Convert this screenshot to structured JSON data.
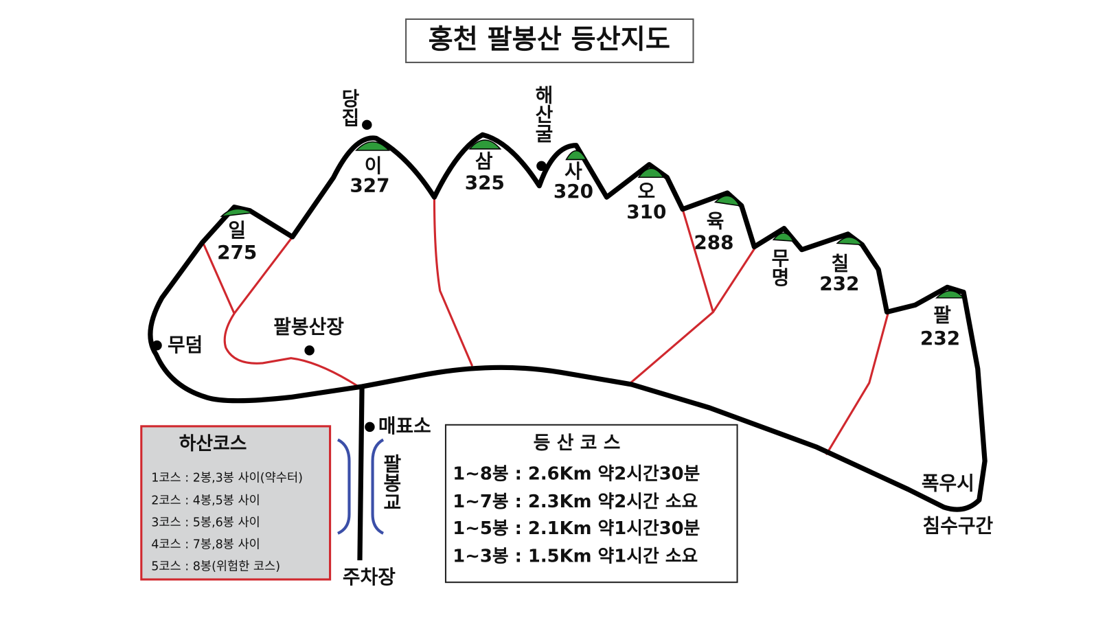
{
  "title": "홍천 팔봉산 등산지도",
  "peaks": [
    {
      "name": "일",
      "elevation": 275
    },
    {
      "name": "이",
      "elevation": 327
    },
    {
      "name": "삼",
      "elevation": 325
    },
    {
      "name": "사",
      "elevation": 320
    },
    {
      "name": "오",
      "elevation": 310
    },
    {
      "name": "육",
      "elevation": 288
    },
    {
      "name": "무명"
    },
    {
      "name": "칠",
      "elevation": 232
    },
    {
      "name": "팔",
      "elevation": 232
    }
  ],
  "places": {
    "shrine": "당집",
    "cave": "해산굴",
    "tomb": "무덤",
    "lodge": "팔봉산장",
    "ticket_office": "매표소",
    "bridge": "팔봉교",
    "parking": "주차장",
    "flood_note": [
      "폭우시",
      "침수구간"
    ]
  },
  "descent_courses": {
    "title": "하산코스",
    "items": [
      "1코스 : 2봉,3봉 사이(약수터)",
      "2코스 : 4봉,5봉 사이",
      "3코스 : 5봉,6봉 사이",
      "4코스 : 7봉,8봉 사이",
      "5코스 : 8봉(위험한 코스)"
    ]
  },
  "hiking_courses": {
    "title": "등 산 코 스",
    "items": [
      "1~8봉 : 2.6Km 약2시간30분",
      "1~7봉 : 2.3Km 약2시간 소요",
      "1~5봉 : 2.1Km 약1시간30분",
      "1~3봉 : 1.5Km 약1시간 소요"
    ]
  }
}
